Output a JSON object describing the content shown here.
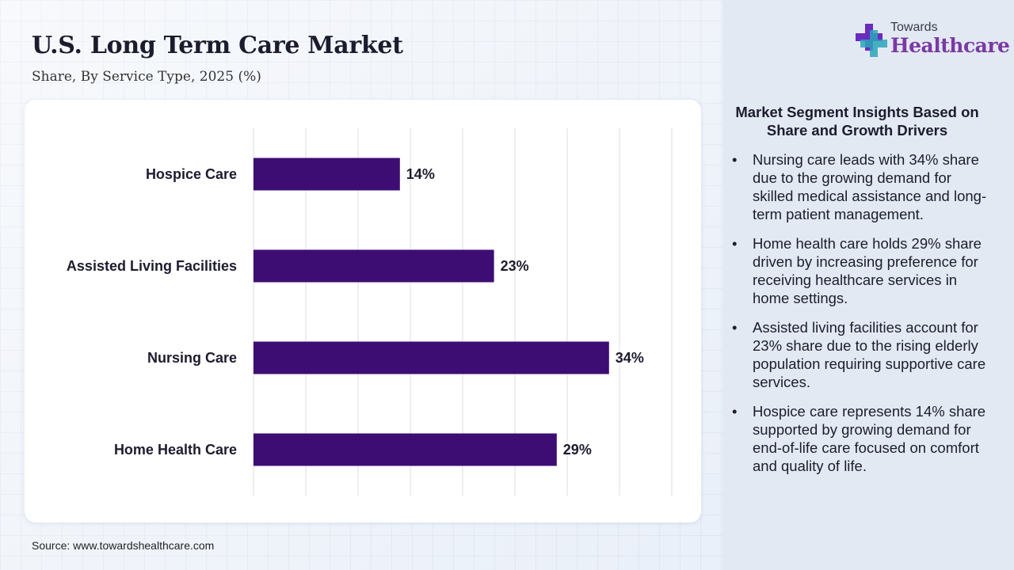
{
  "header": {
    "title": "U.S. Long Term Care Market",
    "subtitle": "Share, By Service Type, 2025 (%)"
  },
  "source": "Source: www.towardshealthcare.com",
  "brand": {
    "top": "Towards",
    "bottom": "Healthcare",
    "colors": {
      "accent": "#7a3aa3",
      "cross": "#6a2bbf",
      "teal": "#2aa6b8"
    }
  },
  "insights": {
    "heading": "Market Segment Insights Based on Share and Growth Drivers",
    "bullet": "•",
    "items": [
      "Nursing care leads with 34% share due to the growing demand for skilled medical assistance and long-term patient management.",
      "Home health care holds 29% share driven by increasing preference for receiving healthcare services in home settings.",
      "Assisted living facilities account for 23% share due to the rising elderly population requiring supportive care services.",
      "Hospice care represents 14% share supported by growing demand for end-of-life care focused on comfort and quality of life."
    ]
  },
  "chart_data": {
    "type": "bar",
    "orientation": "horizontal",
    "categories": [
      "Hospice Care",
      "Assisted Living Facilities",
      "Nursing Care",
      "Home Health Care"
    ],
    "values": [
      14,
      23,
      34,
      29
    ],
    "value_labels": [
      "14%",
      "23%",
      "34%",
      "29%"
    ],
    "xlim": [
      0,
      40
    ],
    "grid": true,
    "bar_color": "#3d0d73"
  }
}
